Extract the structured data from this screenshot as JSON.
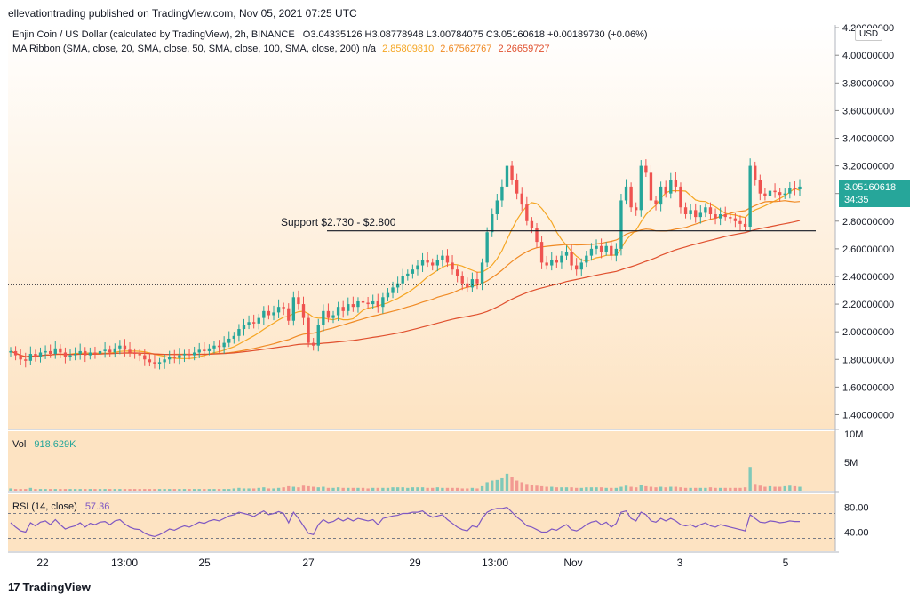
{
  "header": {
    "publisher": "ellevationtrading published on TradingView.com, Nov 05, 2021 07:25 UTC"
  },
  "legend": {
    "symbol": "Enjin Coin / US Dollar (calculated by TradingView), 2h, BINANCE",
    "ohlc": "O3.04335126  H3.08778948  L3.00784075  C3.05160618  +0.00189730 (+0.06%)",
    "ma_label": "MA Ribbon (SMA, close, 20, SMA, close, 50, SMA, close, 100, SMA, close, 200)  n/a",
    "ma20": "2.85809810",
    "ma50": "2.67562767",
    "ma100": "2.26659727",
    "vol_label": "Vol",
    "vol_value": "918.629K",
    "rsi_label": "RSI (14, close)",
    "rsi_value": "57.36"
  },
  "price_label": {
    "price": "3.05160618",
    "countdown": "34:35"
  },
  "usd": "USD",
  "annotation": "Support $2.730 - $2.800",
  "footer": {
    "brand": "TradingView",
    "mark": "17"
  },
  "colors": {
    "up": "#26a69a",
    "down": "#ef5350",
    "ma20": "#f5a623",
    "ma50": "#f08a24",
    "ma100": "#e0502e",
    "rsi": "#7e57c2",
    "bg_top": "#ffffff",
    "bg_bottom": "#fde3c2"
  },
  "chart_data": {
    "type": "candlestick",
    "y_axis": {
      "labels": [
        "4.20000000",
        "4.00000000",
        "3.80000000",
        "3.60000000",
        "3.40000000",
        "3.20000000",
        "3.00000000",
        "2.80000000",
        "2.60000000",
        "2.40000000",
        "2.20000000",
        "2.00000000",
        "1.80000000",
        "1.60000000",
        "1.40000000"
      ],
      "values": [
        4.2,
        4.0,
        3.8,
        3.6,
        3.4,
        3.2,
        3.0,
        2.8,
        2.6,
        2.4,
        2.2,
        2.0,
        1.8,
        1.6,
        1.4
      ],
      "range": [
        1.3,
        4.22
      ]
    },
    "x_axis": {
      "labels": [
        "22",
        "13:00",
        "25",
        "27",
        "29",
        "13:00",
        "Nov",
        "3",
        "5"
      ]
    },
    "vol_axis": {
      "labels": [
        "10M",
        "5M"
      ],
      "values": [
        10,
        5
      ]
    },
    "rsi_axis": {
      "labels": [
        "80.00",
        "40.00"
      ],
      "values": [
        80,
        40
      ],
      "bands": [
        70,
        30
      ]
    },
    "support_level": 2.73,
    "dotted_level": 2.34,
    "close": [
      1.86,
      1.83,
      1.8,
      1.79,
      1.84,
      1.82,
      1.85,
      1.86,
      1.84,
      1.88,
      1.85,
      1.82,
      1.83,
      1.84,
      1.86,
      1.83,
      1.85,
      1.84,
      1.86,
      1.87,
      1.85,
      1.88,
      1.9,
      1.87,
      1.85,
      1.84,
      1.83,
      1.8,
      1.78,
      1.77,
      1.78,
      1.8,
      1.82,
      1.81,
      1.83,
      1.84,
      1.83,
      1.85,
      1.87,
      1.86,
      1.88,
      1.9,
      1.89,
      1.92,
      1.95,
      1.97,
      2.02,
      2.05,
      2.07,
      2.06,
      2.1,
      2.15,
      2.12,
      2.14,
      2.18,
      2.17,
      2.08,
      2.25,
      2.2,
      2.1,
      1.92,
      1.9,
      2.05,
      2.15,
      2.1,
      2.12,
      2.18,
      2.15,
      2.2,
      2.18,
      2.22,
      2.21,
      2.2,
      2.22,
      2.18,
      2.25,
      2.28,
      2.32,
      2.35,
      2.4,
      2.42,
      2.45,
      2.48,
      2.52,
      2.5,
      2.48,
      2.52,
      2.55,
      2.5,
      2.45,
      2.4,
      2.35,
      2.32,
      2.38,
      2.35,
      2.5,
      2.72,
      2.85,
      2.95,
      3.05,
      3.2,
      3.1,
      3.0,
      2.92,
      2.8,
      2.75,
      2.65,
      2.5,
      2.48,
      2.52,
      2.5,
      2.55,
      2.58,
      2.48,
      2.45,
      2.5,
      2.55,
      2.6,
      2.62,
      2.58,
      2.62,
      2.55,
      2.6,
      2.95,
      3.05,
      2.9,
      2.88,
      3.2,
      3.15,
      2.95,
      2.92,
      3.05,
      3.0,
      3.1,
      3.05,
      2.9,
      2.85,
      2.88,
      2.83,
      2.86,
      2.9,
      2.85,
      2.82,
      2.85,
      2.83,
      2.82,
      2.8,
      2.78,
      2.76,
      3.2,
      3.1,
      3.0,
      2.98,
      3.02,
      3.01,
      2.99,
      3.0,
      3.04,
      3.03,
      3.05
    ],
    "volume": [
      0.4,
      0.3,
      0.3,
      0.3,
      0.5,
      0.3,
      0.3,
      0.3,
      0.3,
      0.3,
      0.3,
      0.3,
      0.3,
      0.3,
      0.3,
      0.3,
      0.3,
      0.3,
      0.3,
      0.3,
      0.3,
      0.3,
      0.3,
      0.3,
      0.3,
      0.3,
      0.3,
      0.3,
      0.3,
      0.3,
      0.3,
      0.3,
      0.3,
      0.3,
      0.3,
      0.3,
      0.3,
      0.3,
      0.3,
      0.3,
      0.3,
      0.3,
      0.3,
      0.3,
      0.3,
      0.4,
      0.5,
      0.4,
      0.4,
      0.4,
      0.5,
      0.6,
      0.4,
      0.4,
      0.5,
      0.6,
      0.8,
      0.7,
      0.6,
      0.9,
      0.8,
      0.7,
      0.6,
      0.7,
      0.5,
      0.5,
      0.6,
      0.5,
      0.5,
      0.5,
      0.5,
      0.5,
      0.4,
      0.5,
      0.5,
      0.5,
      0.5,
      0.6,
      0.6,
      0.6,
      0.5,
      0.6,
      0.6,
      0.6,
      0.5,
      0.5,
      0.6,
      0.5,
      0.5,
      0.5,
      0.5,
      0.4,
      0.4,
      0.5,
      0.4,
      0.8,
      1.5,
      1.8,
      1.9,
      2.2,
      3.0,
      2.4,
      1.8,
      1.5,
      1.2,
      1.0,
      0.9,
      0.8,
      0.7,
      0.7,
      0.6,
      0.6,
      0.6,
      0.6,
      0.5,
      0.5,
      0.6,
      0.6,
      0.6,
      0.6,
      0.5,
      0.5,
      0.5,
      0.7,
      0.9,
      0.7,
      0.6,
      1.0,
      0.8,
      0.7,
      0.6,
      0.7,
      0.6,
      0.7,
      0.7,
      0.6,
      0.5,
      0.5,
      0.5,
      0.5,
      0.5,
      0.6,
      0.5,
      0.5,
      0.5,
      0.5,
      0.5,
      0.5,
      0.6,
      4.2,
      1.2,
      0.9,
      0.7,
      0.8,
      0.7,
      0.7,
      0.8,
      0.9,
      0.8,
      0.7
    ],
    "rsi": [
      55,
      48,
      42,
      40,
      55,
      50,
      56,
      58,
      52,
      60,
      52,
      45,
      48,
      50,
      55,
      48,
      54,
      52,
      56,
      57,
      52,
      58,
      60,
      53,
      48,
      45,
      44,
      38,
      35,
      33,
      36,
      40,
      45,
      43,
      47,
      50,
      48,
      52,
      56,
      54,
      58,
      60,
      58,
      62,
      66,
      68,
      72,
      70,
      68,
      65,
      70,
      74,
      68,
      70,
      73,
      70,
      55,
      72,
      62,
      50,
      38,
      36,
      52,
      60,
      55,
      57,
      62,
      58,
      62,
      58,
      62,
      60,
      58,
      60,
      52,
      62,
      64,
      66,
      67,
      70,
      70,
      72,
      72,
      74,
      68,
      64,
      66,
      68,
      60,
      54,
      48,
      44,
      42,
      50,
      48,
      62,
      72,
      76,
      78,
      78,
      80,
      72,
      64,
      58,
      50,
      48,
      44,
      40,
      40,
      45,
      43,
      48,
      52,
      44,
      42,
      46,
      52,
      56,
      58,
      52,
      56,
      48,
      54,
      72,
      74,
      62,
      58,
      72,
      68,
      58,
      56,
      62,
      58,
      62,
      58,
      52,
      50,
      52,
      48,
      52,
      55,
      50,
      48,
      52,
      50,
      48,
      46,
      44,
      42,
      68,
      62,
      56,
      55,
      58,
      57,
      55,
      56,
      58,
      57,
      57
    ]
  }
}
